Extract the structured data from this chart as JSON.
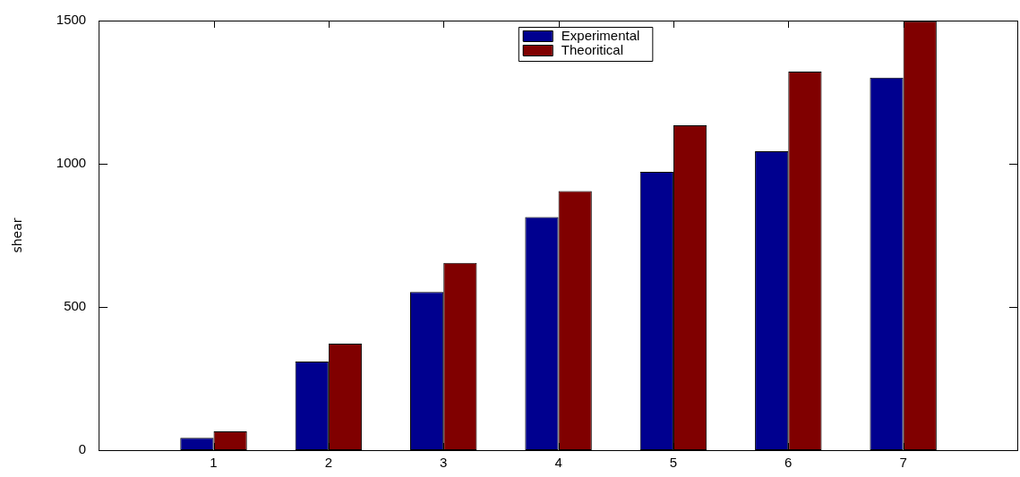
{
  "chart_data": {
    "type": "bar",
    "ylabel": "shear",
    "x": [
      1,
      2,
      3,
      4,
      5,
      6,
      7
    ],
    "xlim": [
      0,
      8
    ],
    "xticks": [
      1,
      2,
      3,
      4,
      5,
      6,
      7
    ],
    "ylim": [
      0,
      1500
    ],
    "yticks": [
      0,
      500,
      1000,
      1500
    ],
    "grid": false,
    "legend": "top",
    "series": [
      {
        "name": "Experimental",
        "color": "#00008f",
        "values": [
          43,
          309,
          552,
          814,
          972,
          1044,
          1301
        ]
      },
      {
        "name": "Theoritical",
        "color": "#800000",
        "values": [
          66,
          372,
          654,
          905,
          1134,
          1322,
          1498
        ]
      }
    ]
  }
}
